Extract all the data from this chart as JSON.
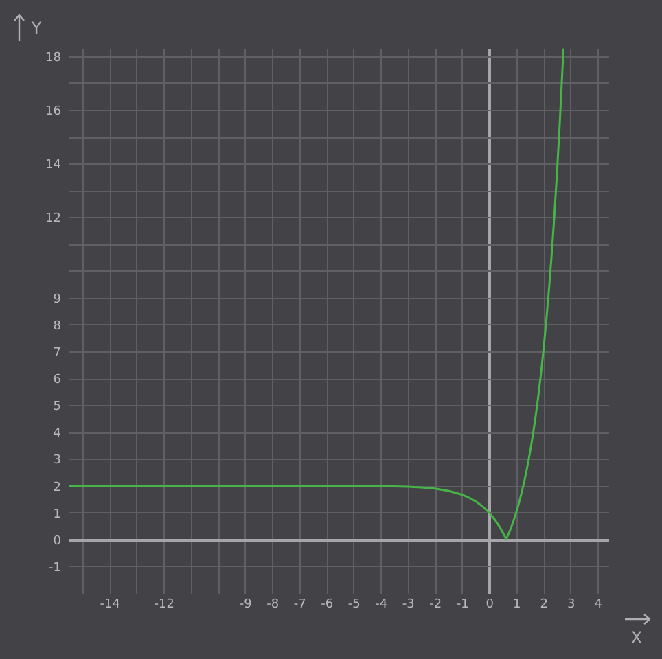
{
  "chart_data": {
    "type": "line",
    "xlabel": "X",
    "ylabel": "Y",
    "x": [
      -15.5,
      -10,
      -6,
      -4,
      -3,
      -2.5,
      -2,
      -1.5,
      -1,
      -0.75,
      -0.5,
      -0.25,
      0,
      0.2,
      0.4,
      0.5,
      0.6,
      0.63,
      0.7,
      0.8,
      0.9,
      1,
      1.1,
      1.2,
      1.3,
      1.4,
      1.5,
      1.6,
      1.7,
      1.8,
      1.9,
      2,
      2.1,
      2.2,
      2.3,
      2.4,
      2.5,
      2.6,
      2.7,
      2.74
    ],
    "values": [
      2,
      2,
      2,
      1.99,
      1.96,
      1.94,
      1.89,
      1.81,
      1.67,
      1.56,
      1.42,
      1.24,
      1,
      0.75,
      0.45,
      0.27,
      0.07,
      0,
      0.16,
      0.41,
      0.69,
      1,
      1.35,
      1.74,
      2.17,
      2.66,
      3.2,
      3.8,
      4.47,
      5.22,
      6.06,
      7,
      8.05,
      9.21,
      10.51,
      11.97,
      13.59,
      15.4,
      17.42,
      18.25
    ],
    "color": "#46b446",
    "xlim": [
      -15.5,
      4.4
    ],
    "ylim": [
      -2,
      18.3
    ],
    "xticks": [
      {
        "value": -15,
        "label": null
      },
      -14,
      {
        "value": -13,
        "label": null
      },
      -12,
      {
        "value": -11,
        "label": null
      },
      {
        "value": -10,
        "label": null
      },
      -9,
      -8,
      -7,
      -6,
      -5,
      -4,
      -3,
      -2,
      -1,
      0,
      1,
      2,
      3,
      4
    ],
    "yticks": [
      -1,
      0,
      1,
      2,
      3,
      4,
      5,
      6,
      7,
      8,
      9,
      {
        "value": 10,
        "label": null
      },
      {
        "value": 11,
        "label": null
      },
      12,
      {
        "value": 13,
        "label": null
      },
      14,
      {
        "value": 15,
        "label": null
      },
      16,
      {
        "value": 17,
        "label": null
      },
      18
    ],
    "grid": true
  }
}
